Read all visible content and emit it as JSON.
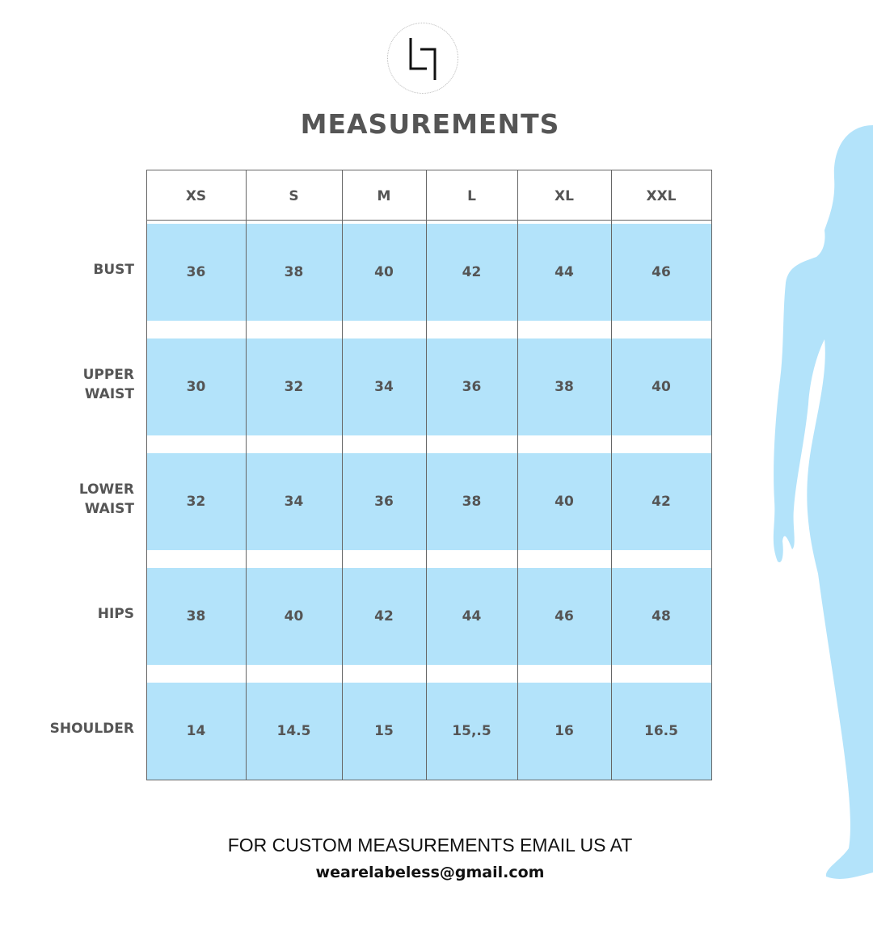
{
  "logo_text": "LJ",
  "title": "MEASUREMENTS",
  "sizes": [
    "XS",
    "S",
    "M",
    "L",
    "XL",
    "XXL"
  ],
  "rows": [
    {
      "label": [
        "BUST"
      ],
      "values": [
        "36",
        "38",
        "40",
        "42",
        "44",
        "46"
      ]
    },
    {
      "label": [
        "UPPER",
        "WAIST"
      ],
      "values": [
        "30",
        "32",
        "34",
        "36",
        "38",
        "40"
      ]
    },
    {
      "label": [
        "LOWER",
        "WAIST"
      ],
      "values": [
        "32",
        "34",
        "36",
        "38",
        "40",
        "42"
      ]
    },
    {
      "label": [
        "HIPS"
      ],
      "values": [
        "38",
        "40",
        "42",
        "44",
        "46",
        "48"
      ]
    },
    {
      "label": [
        "SHOULDER"
      ],
      "values": [
        "14",
        "14.5",
        "15",
        "15,.5",
        "16",
        "16.5"
      ]
    }
  ],
  "footer": {
    "line1": "FOR CUSTOM MEASUREMENTS EMAIL US AT",
    "email": "wearelabeless@gmail.com"
  },
  "colors": {
    "band": "#b3e3fa",
    "silhouette": "#b3e3fa",
    "text": "#555555"
  }
}
